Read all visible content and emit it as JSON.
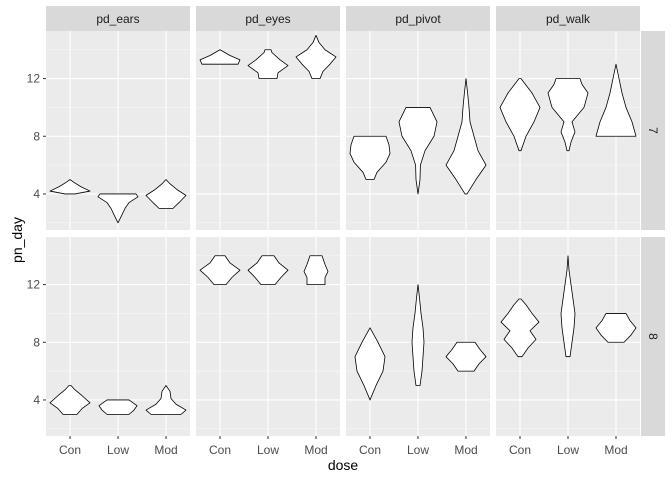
{
  "chart_data": {
    "type": "violin",
    "xlabel": "dose",
    "ylabel": "pn_day",
    "x_categories": [
      "Con",
      "Low",
      "Mod"
    ],
    "y_ticks": [
      4,
      8,
      12
    ],
    "ylim": [
      1.5,
      15.3
    ],
    "grid": true,
    "legend": "none",
    "facet_columns": [
      "pd_ears",
      "pd_eyes",
      "pd_pivot",
      "pd_walk"
    ],
    "facet_rows": [
      "7",
      "8"
    ],
    "panels": [
      {
        "col": "pd_ears",
        "row": "7",
        "violins": [
          {
            "dose": "Con",
            "range": [
              4,
              5
            ],
            "profile": [
              [
                4.0,
                0.25
              ],
              [
                4.2,
                1.0
              ],
              [
                4.5,
                0.55
              ],
              [
                4.8,
                0.2
              ],
              [
                5.0,
                0.0
              ]
            ]
          },
          {
            "dose": "Low",
            "range": [
              2,
              4
            ],
            "profile": [
              [
                2.0,
                0.0
              ],
              [
                2.5,
                0.18
              ],
              [
                3.0,
                0.35
              ],
              [
                3.4,
                0.55
              ],
              [
                3.8,
                1.0
              ],
              [
                4.0,
                0.9
              ]
            ]
          },
          {
            "dose": "Mod",
            "range": [
              3,
              5
            ],
            "profile": [
              [
                3.0,
                0.35
              ],
              [
                3.4,
                0.65
              ],
              [
                3.9,
                1.0
              ],
              [
                4.3,
                0.55
              ],
              [
                4.7,
                0.2
              ],
              [
                5.0,
                0.0
              ]
            ]
          }
        ]
      },
      {
        "col": "pd_eyes",
        "row": "7",
        "violins": [
          {
            "dose": "Con",
            "range": [
              13,
              14
            ],
            "profile": [
              [
                13.0,
                0.9
              ],
              [
                13.3,
                1.0
              ],
              [
                13.6,
                0.5
              ],
              [
                14.0,
                0.0
              ]
            ]
          },
          {
            "dose": "Low",
            "range": [
              12,
              14
            ],
            "profile": [
              [
                12.0,
                0.45
              ],
              [
                12.4,
                0.5
              ],
              [
                12.9,
                1.0
              ],
              [
                13.3,
                0.6
              ],
              [
                13.8,
                0.2
              ],
              [
                14.0,
                0.15
              ]
            ]
          },
          {
            "dose": "Mod",
            "range": [
              12,
              15
            ],
            "profile": [
              [
                12.0,
                0.2
              ],
              [
                12.5,
                0.35
              ],
              [
                13.0,
                0.7
              ],
              [
                13.5,
                1.0
              ],
              [
                14.0,
                0.45
              ],
              [
                14.5,
                0.15
              ],
              [
                15.0,
                0.0
              ]
            ]
          }
        ]
      },
      {
        "col": "pd_pivot",
        "row": "7",
        "violins": [
          {
            "dose": "Con",
            "range": [
              5,
              8
            ],
            "profile": [
              [
                5.0,
                0.2
              ],
              [
                5.5,
                0.35
              ],
              [
                6.2,
                0.8
              ],
              [
                6.8,
                1.0
              ],
              [
                7.4,
                0.95
              ],
              [
                8.0,
                0.8
              ]
            ]
          },
          {
            "dose": "Low",
            "range": [
              4,
              10
            ],
            "profile": [
              [
                4.0,
                0.0
              ],
              [
                5.0,
                0.1
              ],
              [
                6.0,
                0.12
              ],
              [
                7.0,
                0.35
              ],
              [
                8.0,
                0.8
              ],
              [
                9.0,
                0.95
              ],
              [
                10.0,
                0.6
              ]
            ]
          },
          {
            "dose": "Mod",
            "range": [
              4,
              12
            ],
            "profile": [
              [
                4.0,
                0.05
              ],
              [
                5.0,
                0.5
              ],
              [
                6.0,
                1.0
              ],
              [
                7.0,
                0.6
              ],
              [
                8.0,
                0.4
              ],
              [
                9.0,
                0.2
              ],
              [
                10.0,
                0.15
              ],
              [
                11.0,
                0.08
              ],
              [
                12.0,
                0.0
              ]
            ]
          }
        ]
      },
      {
        "col": "pd_walk",
        "row": "7",
        "violins": [
          {
            "dose": "Con",
            "range": [
              7,
              12
            ],
            "profile": [
              [
                7.0,
                0.05
              ],
              [
                8.0,
                0.3
              ],
              [
                9.0,
                0.7
              ],
              [
                10.0,
                1.0
              ],
              [
                11.0,
                0.6
              ],
              [
                12.0,
                0.05
              ]
            ]
          },
          {
            "dose": "Low",
            "range": [
              7,
              12
            ],
            "profile": [
              [
                7.0,
                0.05
              ],
              [
                7.6,
                0.15
              ],
              [
                8.3,
                0.35
              ],
              [
                9.0,
                0.2
              ],
              [
                10.0,
                0.8
              ],
              [
                11.0,
                1.0
              ],
              [
                11.6,
                0.7
              ],
              [
                12.0,
                0.6
              ]
            ]
          },
          {
            "dose": "Mod",
            "range": [
              8,
              13
            ],
            "profile": [
              [
                8.0,
                1.0
              ],
              [
                9.0,
                0.8
              ],
              [
                10.0,
                0.5
              ],
              [
                11.0,
                0.3
              ],
              [
                12.0,
                0.15
              ],
              [
                13.0,
                0.0
              ]
            ]
          }
        ]
      },
      {
        "col": "pd_ears",
        "row": "8",
        "violins": [
          {
            "dose": "Con",
            "range": [
              3,
              5
            ],
            "profile": [
              [
                3.0,
                0.35
              ],
              [
                3.4,
                0.6
              ],
              [
                3.8,
                1.0
              ],
              [
                4.3,
                0.6
              ],
              [
                4.7,
                0.25
              ],
              [
                5.0,
                0.05
              ]
            ]
          },
          {
            "dose": "Low",
            "range": [
              3,
              4
            ],
            "profile": [
              [
                3.0,
                0.55
              ],
              [
                3.3,
                0.8
              ],
              [
                3.6,
                0.95
              ],
              [
                4.0,
                0.55
              ]
            ]
          },
          {
            "dose": "Mod",
            "range": [
              3,
              5
            ],
            "profile": [
              [
                3.0,
                0.75
              ],
              [
                3.3,
                1.0
              ],
              [
                3.7,
                0.5
              ],
              [
                4.1,
                0.25
              ],
              [
                4.6,
                0.2
              ],
              [
                5.0,
                0.0
              ]
            ]
          }
        ]
      },
      {
        "col": "pd_eyes",
        "row": "8",
        "violins": [
          {
            "dose": "Con",
            "range": [
              12,
              14
            ],
            "profile": [
              [
                12.0,
                0.3
              ],
              [
                12.5,
                0.6
              ],
              [
                13.0,
                1.0
              ],
              [
                13.5,
                0.5
              ],
              [
                14.0,
                0.25
              ]
            ]
          },
          {
            "dose": "Low",
            "range": [
              12,
              14
            ],
            "profile": [
              [
                12.0,
                0.35
              ],
              [
                12.5,
                0.65
              ],
              [
                13.0,
                1.0
              ],
              [
                13.5,
                0.55
              ],
              [
                14.0,
                0.3
              ]
            ]
          },
          {
            "dose": "Mod",
            "range": [
              12,
              14
            ],
            "profile": [
              [
                12.0,
                0.45
              ],
              [
                12.5,
                0.45
              ],
              [
                12.9,
                0.6
              ],
              [
                13.4,
                0.45
              ],
              [
                14.0,
                0.3
              ]
            ]
          }
        ]
      },
      {
        "col": "pd_pivot",
        "row": "8",
        "violins": [
          {
            "dose": "Con",
            "range": [
              4,
              9
            ],
            "profile": [
              [
                4.0,
                0.0
              ],
              [
                5.0,
                0.3
              ],
              [
                6.0,
                0.65
              ],
              [
                7.0,
                0.75
              ],
              [
                8.0,
                0.4
              ],
              [
                9.0,
                0.0
              ]
            ]
          },
          {
            "dose": "Low",
            "range": [
              5,
              12
            ],
            "profile": [
              [
                5.0,
                0.1
              ],
              [
                6.0,
                0.2
              ],
              [
                7.0,
                0.25
              ],
              [
                8.0,
                0.3
              ],
              [
                9.0,
                0.25
              ],
              [
                10.0,
                0.15
              ],
              [
                11.0,
                0.08
              ],
              [
                12.0,
                0.0
              ]
            ]
          },
          {
            "dose": "Mod",
            "range": [
              6,
              8
            ],
            "profile": [
              [
                6.0,
                0.4
              ],
              [
                6.5,
                0.65
              ],
              [
                7.0,
                1.0
              ],
              [
                7.5,
                0.7
              ],
              [
                8.0,
                0.45
              ]
            ]
          }
        ]
      },
      {
        "col": "pd_walk",
        "row": "8",
        "violins": [
          {
            "dose": "Con",
            "range": [
              7,
              11
            ],
            "profile": [
              [
                7.0,
                0.1
              ],
              [
                7.6,
                0.4
              ],
              [
                8.2,
                0.8
              ],
              [
                8.8,
                0.5
              ],
              [
                9.4,
                0.95
              ],
              [
                10.0,
                0.6
              ],
              [
                10.6,
                0.3
              ],
              [
                11.0,
                0.05
              ]
            ]
          },
          {
            "dose": "Low",
            "range": [
              7,
              14
            ],
            "profile": [
              [
                7.0,
                0.1
              ],
              [
                8.0,
                0.2
              ],
              [
                9.0,
                0.3
              ],
              [
                10.0,
                0.35
              ],
              [
                11.0,
                0.25
              ],
              [
                12.0,
                0.15
              ],
              [
                13.0,
                0.05
              ],
              [
                14.0,
                0.0
              ]
            ]
          },
          {
            "dose": "Mod",
            "range": [
              8,
              10
            ],
            "profile": [
              [
                8.0,
                0.4
              ],
              [
                8.5,
                0.75
              ],
              [
                9.0,
                1.0
              ],
              [
                9.5,
                0.7
              ],
              [
                10.0,
                0.5
              ]
            ]
          }
        ]
      }
    ]
  }
}
